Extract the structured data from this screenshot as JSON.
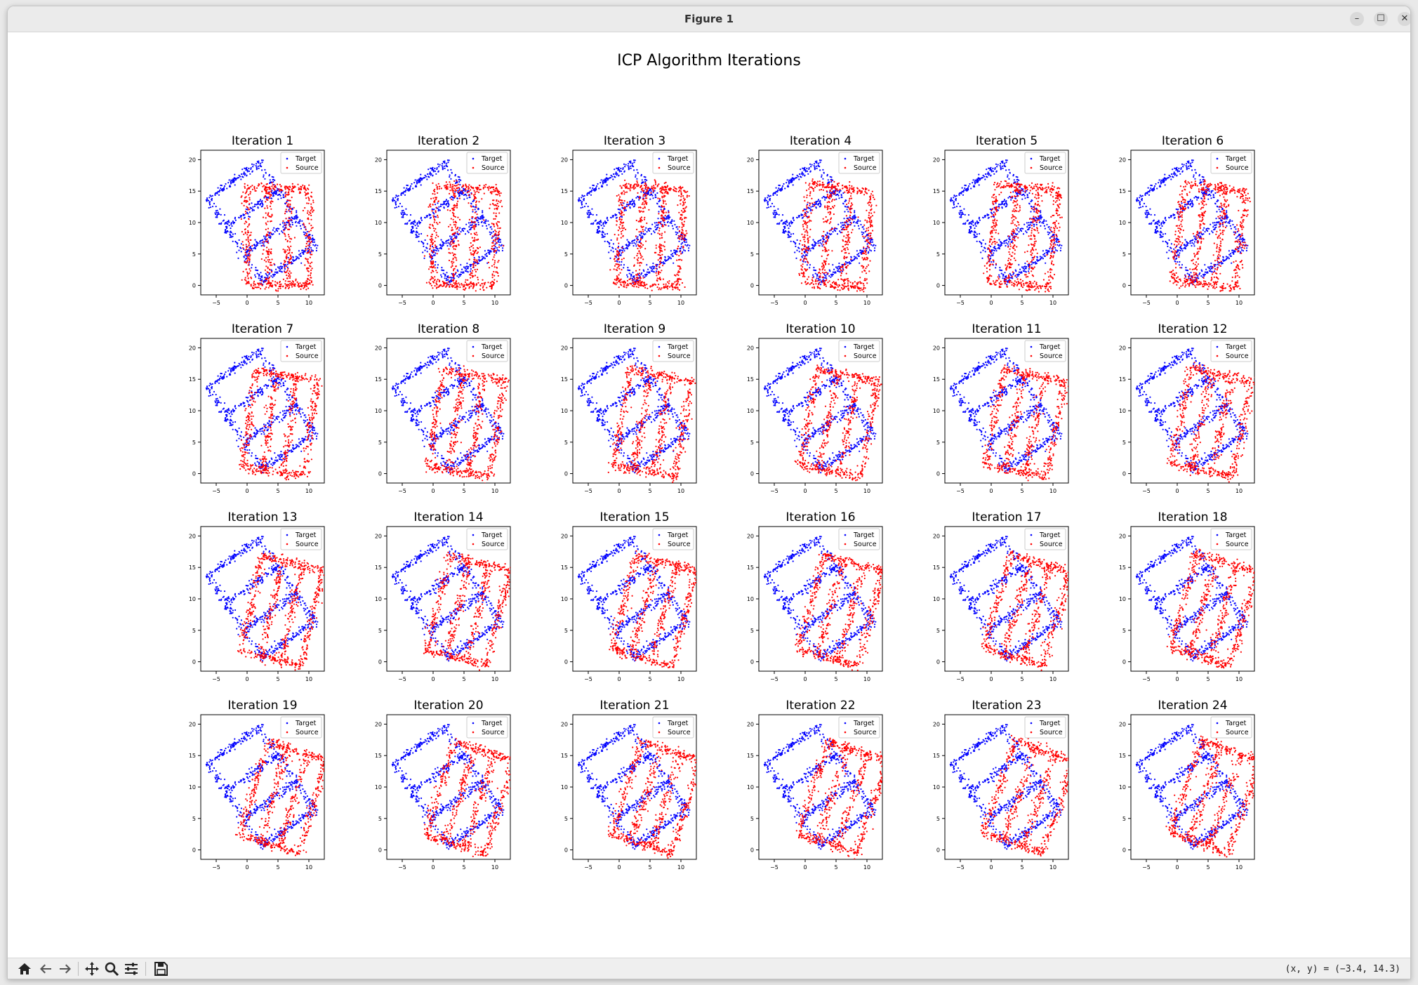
{
  "window": {
    "title": "Figure 1",
    "minimize_label": "–",
    "maximize_label": "☐",
    "close_label": "✕"
  },
  "figure": {
    "suptitle": "ICP Algorithm Iterations"
  },
  "toolbar": {
    "icons": [
      "home-icon",
      "back-icon",
      "forward-icon",
      "pan-icon",
      "zoom-icon",
      "configure-subplots-icon",
      "save-icon"
    ],
    "coords_text": "(x, y) = (−3.4, 14.3)"
  },
  "colors": {
    "target": "#0000ff",
    "source": "#ff0000"
  },
  "chart_data": {
    "type": "scatter",
    "panel_count": 24,
    "titles": [
      "Iteration 1",
      "Iteration 2",
      "Iteration 3",
      "Iteration 4",
      "Iteration 5",
      "Iteration 6",
      "Iteration 7",
      "Iteration 8",
      "Iteration 9",
      "Iteration 10",
      "Iteration 11",
      "Iteration 12",
      "Iteration 13",
      "Iteration 14",
      "Iteration 15",
      "Iteration 16",
      "Iteration 17",
      "Iteration 18",
      "Iteration 19",
      "Iteration 20",
      "Iteration 21",
      "Iteration 22",
      "Iteration 23",
      "Iteration 24"
    ],
    "legend": [
      "Target",
      "Source"
    ],
    "legend_position": "top-right",
    "x_ticks": [
      -5,
      0,
      5,
      10
    ],
    "y_ticks": [
      0,
      5,
      10,
      15,
      20
    ],
    "xlim": [
      -7.5,
      12.5
    ],
    "ylim": [
      -1.5,
      21.5
    ],
    "series": [
      {
        "name": "Target",
        "color": "#0000ff",
        "shape": "rotated rectangle with two interior lines (noisy point cloud)",
        "corners": [
          [
            -6.5,
            13.7
          ],
          [
            2.0,
            19.5
          ],
          [
            11.0,
            6.5
          ],
          [
            2.5,
            0.7
          ]
        ]
      },
      {
        "name": "Source",
        "color": "#ff0000",
        "shape": "rectangle with two interior lines (noisy point cloud), rotates toward target over iterations",
        "corners_iteration_1": [
          [
            0.0,
            0.0
          ],
          [
            0.0,
            15.5
          ],
          [
            10.0,
            15.5
          ],
          [
            10.0,
            0.0
          ]
        ],
        "rotation_deg_by_iteration": [
          0,
          2,
          4,
          5,
          6,
          7,
          8,
          9,
          10,
          11,
          11.5,
          12,
          13,
          14,
          15,
          15.5,
          16,
          16.5,
          17,
          17.5,
          18,
          18.5,
          19,
          19.5
        ]
      }
    ]
  }
}
